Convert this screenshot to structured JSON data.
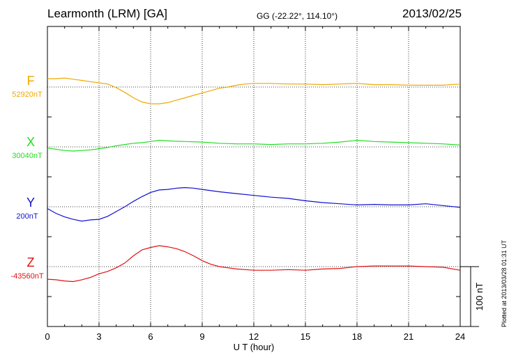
{
  "header": {
    "title": "Learmonth (LRM)  [GA]",
    "coords": "GG (-22.22°, 114.10°)",
    "date": "2013/02/25",
    "plotted": "Plotted at 2013/03/28 01:31  UT"
  },
  "chart_data": {
    "type": "line",
    "xlabel": "U T (hour)",
    "xlim": [
      0,
      24
    ],
    "xticks": [
      0,
      3,
      6,
      9,
      12,
      15,
      18,
      21,
      24
    ],
    "grid": true,
    "scale_bar": {
      "label": "100 nT",
      "value_nT": 100
    },
    "series": [
      {
        "name": "F",
        "baseline_label": "52920nT",
        "baseline_nT": 52920,
        "color": "#f0a800",
        "x": [
          0,
          0.5,
          1,
          1.5,
          2,
          2.5,
          3,
          3.5,
          4,
          4.5,
          5,
          5.5,
          6,
          6.5,
          7,
          7.5,
          8,
          8.5,
          9,
          9.5,
          10,
          10.5,
          11,
          11.5,
          12,
          13,
          14,
          15,
          16,
          17,
          18,
          19,
          20,
          21,
          22,
          23,
          24
        ],
        "values": [
          14,
          14,
          15,
          13,
          11,
          9,
          7,
          5,
          -1,
          -9,
          -18,
          -25,
          -28,
          -28,
          -26,
          -22,
          -18,
          -14,
          -10,
          -6,
          -2,
          0,
          3,
          5,
          6,
          6,
          5,
          5,
          4,
          5,
          6,
          4,
          4,
          3,
          3,
          3,
          5
        ]
      },
      {
        "name": "X",
        "baseline_label": "30040nT",
        "baseline_nT": 30040,
        "color": "#22dd22",
        "x": [
          0,
          0.5,
          1,
          1.5,
          2,
          2.5,
          3,
          3.5,
          4,
          4.5,
          5,
          5.5,
          6,
          6.5,
          7,
          8,
          9,
          10,
          11,
          12,
          13,
          14,
          15,
          16,
          17,
          18,
          19,
          20,
          21,
          22,
          23,
          24
        ],
        "values": [
          -2,
          -4,
          -6,
          -7,
          -6,
          -5,
          -3,
          -1,
          2,
          4,
          6,
          7,
          9,
          11,
          10,
          9,
          8,
          6,
          5,
          5,
          4,
          5,
          5,
          6,
          8,
          11,
          9,
          8,
          7,
          6,
          5,
          3
        ]
      },
      {
        "name": "Y",
        "baseline_label": "200nT",
        "baseline_nT": 200,
        "color": "#1010d0",
        "x": [
          0,
          0.5,
          1,
          1.5,
          2,
          2.5,
          3,
          3.5,
          4,
          4.5,
          5,
          5.5,
          6,
          6.5,
          7,
          7.5,
          8,
          8.5,
          9,
          10,
          11,
          12,
          13,
          14,
          15,
          16,
          17,
          18,
          19,
          20,
          21,
          22,
          23,
          24
        ],
        "values": [
          -3,
          -11,
          -17,
          -21,
          -24,
          -22,
          -21,
          -16,
          -8,
          0,
          9,
          17,
          24,
          28,
          29,
          31,
          32,
          31,
          29,
          25,
          22,
          19,
          16,
          14,
          10,
          7,
          5,
          3,
          4,
          3,
          3,
          5,
          2,
          -1
        ]
      },
      {
        "name": "Z",
        "baseline_label": "-43560nT",
        "baseline_nT": -43560,
        "color": "#e01010",
        "x": [
          0,
          0.5,
          1,
          1.5,
          2,
          2.5,
          3,
          3.5,
          4,
          4.5,
          5,
          5.5,
          6,
          6.5,
          7,
          7.5,
          8,
          8.5,
          9,
          9.5,
          10,
          10.5,
          11,
          11.5,
          12,
          13,
          14,
          15,
          16,
          17,
          18,
          19,
          20,
          21,
          22,
          23,
          24
        ],
        "values": [
          -21,
          -22,
          -24,
          -25,
          -22,
          -18,
          -12,
          -8,
          -2,
          6,
          18,
          28,
          32,
          35,
          33,
          30,
          25,
          18,
          10,
          4,
          0,
          -2,
          -4,
          -5,
          -6,
          -6,
          -5,
          -6,
          -4,
          -3,
          0,
          1,
          1,
          1,
          0,
          -1,
          -6
        ]
      }
    ]
  }
}
